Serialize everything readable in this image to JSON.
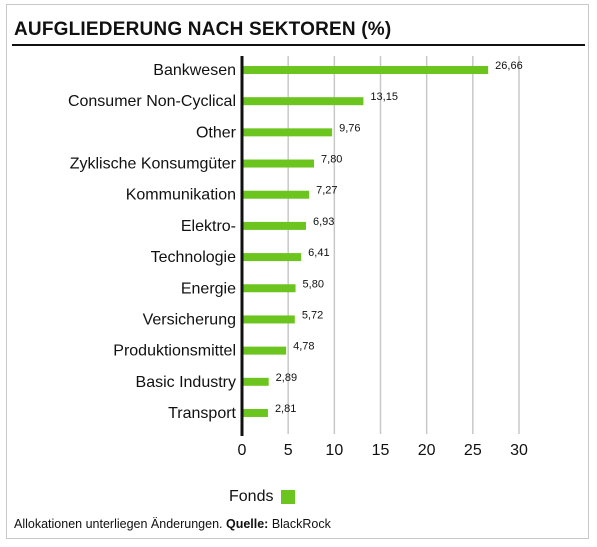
{
  "chart_data": {
    "type": "bar",
    "orientation": "horizontal",
    "title": "AUFGLIEDERUNG NACH SEKTOREN (%)",
    "categories": [
      "Bankwesen",
      "Consumer Non-Cyclical",
      "Other",
      "Zyklische Konsumgüter",
      "Kommunikation",
      "Elektro-",
      "Technologie",
      "Energie",
      "Versicherung",
      "Produktionsmittel",
      "Basic Industry",
      "Transport"
    ],
    "series": [
      {
        "name": "Fonds",
        "color": "#6cc51f",
        "values": [
          26.66,
          13.15,
          9.76,
          7.8,
          7.27,
          6.93,
          6.41,
          5.8,
          5.72,
          4.78,
          2.89,
          2.81
        ],
        "labels": [
          "26,66",
          "13,15",
          "9,76",
          "7,80",
          "7,27",
          "6,93",
          "6,41",
          "5,80",
          "5,72",
          "4,78",
          "2,89",
          "2,81"
        ]
      }
    ],
    "xlim": [
      0,
      30
    ],
    "xticks": [
      0,
      5,
      10,
      15,
      20,
      25,
      30
    ],
    "grid": true,
    "legend_position": "bottom"
  },
  "legend": {
    "label": "Fonds",
    "color": "#6cc51f"
  },
  "footnote": {
    "text": "Allokationen unterliegen Änderungen. ",
    "source_label": "Quelle:",
    "source": " BlackRock"
  },
  "colors": {
    "bar": "#6cc51f",
    "grid": "#c8c8c8",
    "axis": "#111111"
  }
}
